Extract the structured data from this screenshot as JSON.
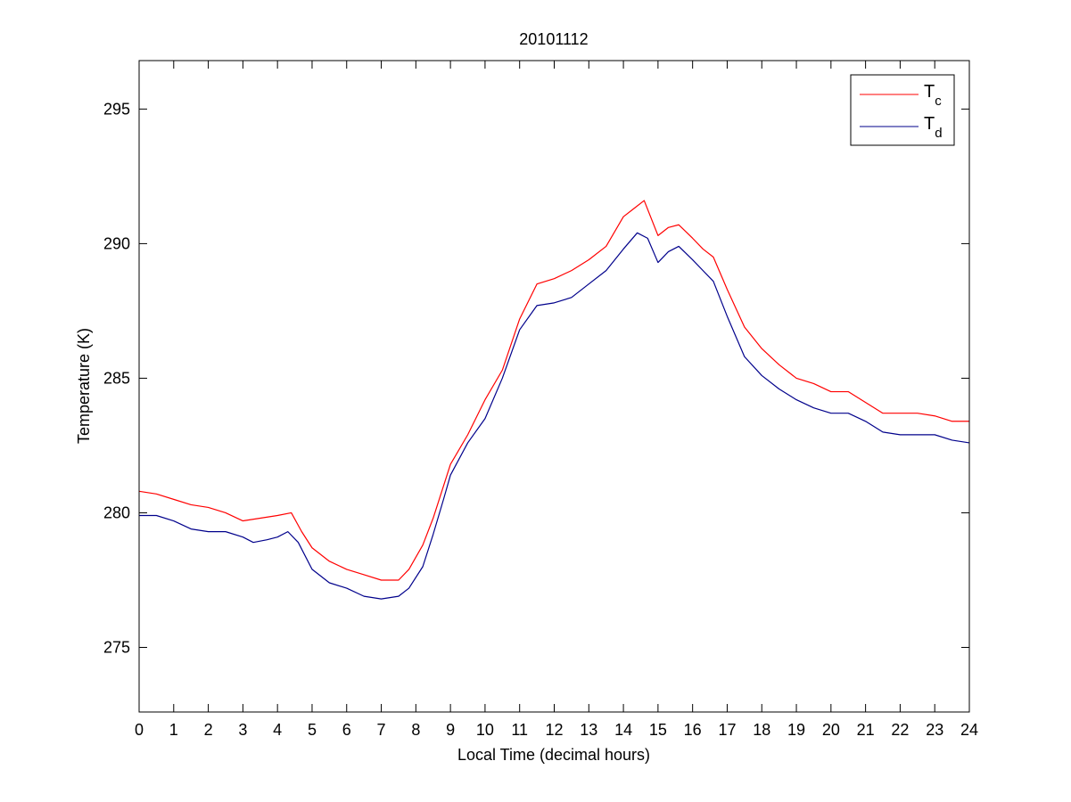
{
  "chart_data": {
    "type": "line",
    "title": "20101112",
    "xlabel": "Local Time (decimal hours)",
    "ylabel": "Temperature (K)",
    "xlim": [
      0,
      24
    ],
    "ylim": [
      272.6,
      296.8
    ],
    "xticks": [
      0,
      1,
      2,
      3,
      4,
      5,
      6,
      7,
      8,
      9,
      10,
      11,
      12,
      13,
      14,
      15,
      16,
      17,
      18,
      19,
      20,
      21,
      22,
      23,
      24
    ],
    "yticks": [
      275,
      280,
      285,
      290,
      295
    ],
    "grid": false,
    "legend_position": "top-right",
    "series": [
      {
        "name": "T",
        "subscript": "c",
        "color": "#ff0000",
        "x": [
          0,
          0.5,
          1,
          1.5,
          2,
          2.5,
          3,
          3.5,
          4,
          4.4,
          4.7,
          5,
          5.5,
          6,
          6.5,
          7,
          7.5,
          7.8,
          8.2,
          8.5,
          8.8,
          9,
          9.5,
          10,
          10.5,
          11,
          11.5,
          12,
          12.5,
          13,
          13.5,
          14,
          14.3,
          14.6,
          15,
          15.3,
          15.6,
          16,
          16.3,
          16.6,
          17,
          17.5,
          18,
          18.5,
          19,
          19.5,
          20,
          20.5,
          21,
          21.5,
          22,
          22.5,
          23,
          23.5,
          24
        ],
        "y": [
          280.8,
          280.7,
          280.5,
          280.3,
          280.2,
          280.0,
          279.7,
          279.8,
          279.9,
          280.0,
          279.3,
          278.7,
          278.2,
          277.9,
          277.7,
          277.5,
          277.5,
          277.9,
          278.8,
          279.8,
          281.0,
          281.8,
          282.9,
          284.2,
          285.3,
          287.2,
          288.5,
          288.7,
          289.0,
          289.4,
          289.9,
          291.0,
          291.3,
          291.6,
          290.3,
          290.6,
          290.7,
          290.2,
          289.8,
          289.5,
          288.3,
          286.9,
          286.1,
          285.5,
          285.0,
          284.8,
          284.5,
          284.5,
          284.1,
          283.7,
          283.7,
          283.7,
          283.6,
          283.4,
          283.4
        ]
      },
      {
        "name": "T",
        "subscript": "d",
        "color": "#00008b",
        "x": [
          0,
          0.5,
          1,
          1.5,
          2,
          2.5,
          3,
          3.3,
          3.7,
          4,
          4.3,
          4.6,
          5,
          5.5,
          6,
          6.5,
          7,
          7.5,
          7.8,
          8.2,
          8.5,
          8.8,
          9,
          9.5,
          10,
          10.5,
          11,
          11.5,
          12,
          12.5,
          13,
          13.5,
          14,
          14.4,
          14.7,
          15,
          15.3,
          15.6,
          16,
          16.3,
          16.6,
          17,
          17.5,
          18,
          18.5,
          19,
          19.5,
          20,
          20.5,
          21,
          21.5,
          22,
          22.5,
          23,
          23.5,
          24
        ],
        "y": [
          279.9,
          279.9,
          279.7,
          279.4,
          279.3,
          279.3,
          279.1,
          278.9,
          279.0,
          279.1,
          279.3,
          278.9,
          277.9,
          277.4,
          277.2,
          276.9,
          276.8,
          276.9,
          277.2,
          278.0,
          279.2,
          280.5,
          281.4,
          282.6,
          283.5,
          285.0,
          286.8,
          287.7,
          287.8,
          288.0,
          288.5,
          289.0,
          289.8,
          290.4,
          290.2,
          289.3,
          289.7,
          289.9,
          289.4,
          289.0,
          288.6,
          287.3,
          285.8,
          285.1,
          284.6,
          284.2,
          283.9,
          283.7,
          283.7,
          283.4,
          283.0,
          282.9,
          282.9,
          282.9,
          282.7,
          282.6
        ]
      }
    ]
  }
}
